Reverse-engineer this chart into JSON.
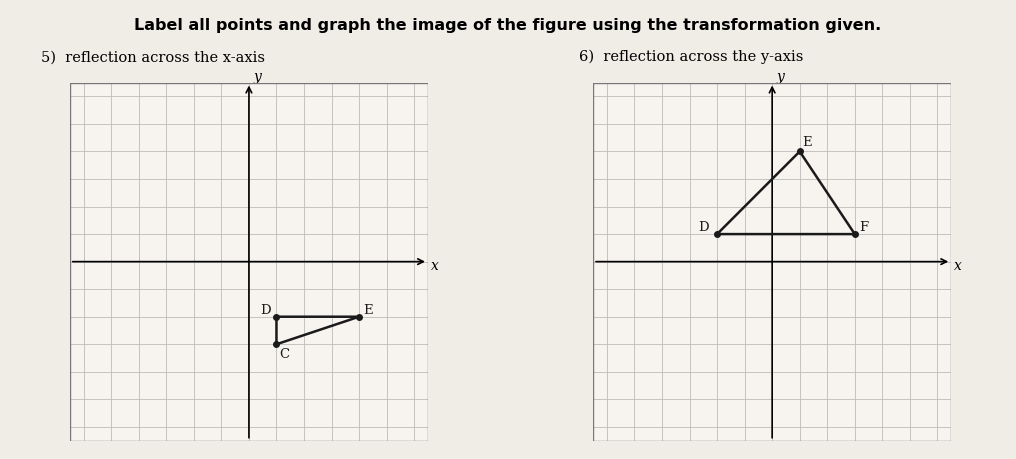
{
  "title_main": "Label all points and graph the image of the figure using the transformation given.",
  "plot5": {
    "subtitle": "5)  reflection across the x-axis",
    "points": {
      "C": [
        1,
        -3
      ],
      "D": [
        1,
        -2
      ],
      "E": [
        4,
        -2
      ]
    },
    "xlim": [
      -6,
      6
    ],
    "ylim": [
      -6,
      6
    ],
    "label_offsets": {
      "C": [
        0.1,
        -0.5
      ],
      "D": [
        -0.6,
        0.1
      ],
      "E": [
        0.15,
        0.1
      ]
    }
  },
  "plot6": {
    "subtitle": "6)  reflection across the y-axis",
    "points": {
      "D": [
        -2,
        1
      ],
      "E": [
        1,
        4
      ],
      "F": [
        3,
        1
      ]
    },
    "xlim": [
      -6,
      6
    ],
    "ylim": [
      -6,
      6
    ],
    "label_offsets": {
      "D": [
        -0.7,
        0.1
      ],
      "E": [
        0.1,
        0.2
      ],
      "F": [
        0.15,
        0.1
      ]
    }
  },
  "grid_color": "#bbbbbb",
  "line_color": "#1a1a1a",
  "background_color": "#f0ece6",
  "paper_color": "#f7f4f0"
}
